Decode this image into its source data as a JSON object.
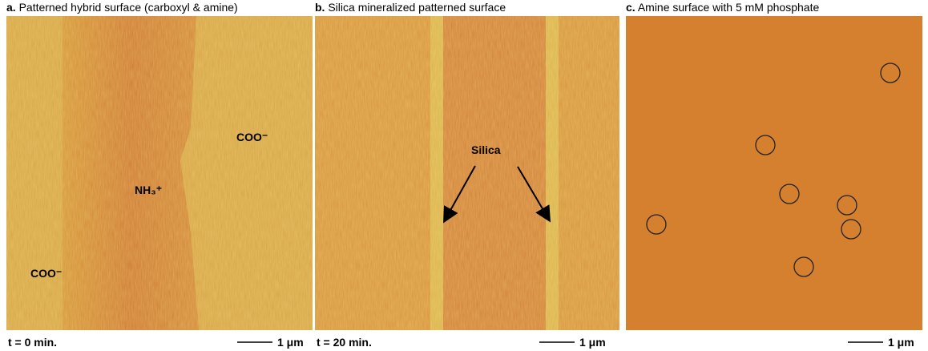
{
  "panels": [
    {
      "letter": "a.",
      "title": "Patterned hybrid surface (carboxyl & amine)",
      "labels": [
        "COO⁻",
        "NH₃⁺",
        "COO⁻"
      ],
      "time": "t = 0 min.",
      "scale": "1 μm"
    },
    {
      "letter": "b.",
      "title": "Silica mineralized patterned surface",
      "labels": [
        "Silica"
      ],
      "time": "t = 20 min.",
      "scale": "1 μm"
    },
    {
      "letter": "c.",
      "title": "Amine surface with 5 mM phosphate",
      "scale": "1 μm"
    }
  ]
}
